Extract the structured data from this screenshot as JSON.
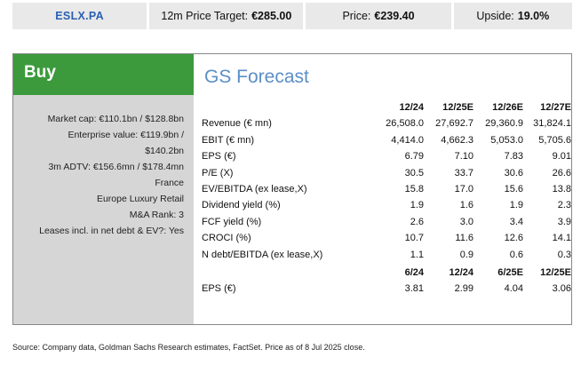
{
  "header": {
    "ticker": "ESLX.PA",
    "target_label": "12m Price Target:",
    "target_value": "€285.00",
    "price_label": "Price:",
    "price_value": "€239.40",
    "upside_label": "Upside:",
    "upside_value": "19.0%"
  },
  "rating": "Buy",
  "facts": [
    "Market cap: €110.1bn / $128.8bn",
    "Enterprise value: €119.9bn /",
    "$140.2bn",
    "3m ADTV: €156.6mn / $178.4mn",
    "France",
    "Europe Luxury Retail",
    "M&A Rank: 3",
    "Leases incl. in net debt & EV?: Yes"
  ],
  "forecast": {
    "title": "GS Forecast",
    "annual_columns": [
      "12/24",
      "12/25E",
      "12/26E",
      "12/27E"
    ],
    "annual_rows": [
      {
        "label": "Revenue (€ mn)",
        "values": [
          "26,508.0",
          "27,692.7",
          "29,360.9",
          "31,824.1"
        ]
      },
      {
        "label": "EBIT (€ mn)",
        "values": [
          "4,414.0",
          "4,662.3",
          "5,053.0",
          "5,705.6"
        ]
      },
      {
        "label": "EPS (€)",
        "values": [
          "6.79",
          "7.10",
          "7.83",
          "9.01"
        ]
      },
      {
        "label": "P/E (X)",
        "values": [
          "30.5",
          "33.7",
          "30.6",
          "26.6"
        ]
      },
      {
        "label": "EV/EBITDA (ex lease,X)",
        "values": [
          "15.8",
          "17.0",
          "15.6",
          "13.8"
        ]
      },
      {
        "label": "Dividend yield (%)",
        "values": [
          "1.9",
          "1.6",
          "1.9",
          "2.3"
        ]
      },
      {
        "label": "FCF yield (%)",
        "values": [
          "2.6",
          "3.0",
          "3.4",
          "3.9"
        ]
      },
      {
        "label": "CROCI (%)",
        "values": [
          "10.7",
          "11.6",
          "12.6",
          "14.1"
        ]
      },
      {
        "label": "N debt/EBITDA (ex lease,X)",
        "values": [
          "1.1",
          "0.9",
          "0.6",
          "0.3"
        ]
      }
    ],
    "semi_columns": [
      "6/24",
      "12/24",
      "6/25E",
      "12/25E"
    ],
    "semi_rows": [
      {
        "label": "EPS (€)",
        "values": [
          "3.81",
          "2.99",
          "4.04",
          "3.06"
        ]
      }
    ]
  },
  "footnote": "Source: Company data, Goldman Sachs Research estimates, FactSet. Price as of 8 Jul 2025 close.",
  "colors": {
    "rating_bg": "#3c9a3c",
    "title": "#5b8fc7",
    "ticker": "#2a5fb3"
  }
}
